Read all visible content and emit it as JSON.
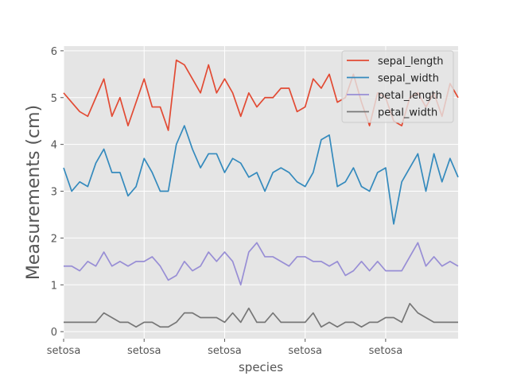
{
  "chart_data": {
    "type": "line",
    "xlabel": "species",
    "ylabel": "Measurements (cm)",
    "ylim": [
      -0.15,
      6.1
    ],
    "yticks": [
      0,
      1,
      2,
      3,
      4,
      5,
      6
    ],
    "xtick_labels": [
      "setosa",
      "setosa",
      "setosa",
      "setosa",
      "setosa"
    ],
    "xtick_index": [
      0,
      10,
      20,
      30,
      40
    ],
    "grid": true,
    "legend_position": "top-right",
    "colors": {
      "sepal_length": "#E24A33",
      "sepal_width": "#348ABD",
      "petal_length": "#988ED5",
      "petal_width": "#777777"
    },
    "series": [
      {
        "name": "sepal_length",
        "values": [
          5.1,
          4.9,
          4.7,
          4.6,
          5.0,
          5.4,
          4.6,
          5.0,
          4.4,
          4.9,
          5.4,
          4.8,
          4.8,
          4.3,
          5.8,
          5.7,
          5.4,
          5.1,
          5.7,
          5.1,
          5.4,
          5.1,
          4.6,
          5.1,
          4.8,
          5.0,
          5.0,
          5.2,
          5.2,
          4.7,
          4.8,
          5.4,
          5.2,
          5.5,
          4.9,
          5.0,
          5.5,
          4.9,
          4.4,
          5.1,
          5.0,
          4.5,
          4.4,
          5.0,
          5.1,
          4.8,
          5.1,
          4.6,
          5.3,
          5.0
        ]
      },
      {
        "name": "sepal_width",
        "values": [
          3.5,
          3.0,
          3.2,
          3.1,
          3.6,
          3.9,
          3.4,
          3.4,
          2.9,
          3.1,
          3.7,
          3.4,
          3.0,
          3.0,
          4.0,
          4.4,
          3.9,
          3.5,
          3.8,
          3.8,
          3.4,
          3.7,
          3.6,
          3.3,
          3.4,
          3.0,
          3.4,
          3.5,
          3.4,
          3.2,
          3.1,
          3.4,
          4.1,
          4.2,
          3.1,
          3.2,
          3.5,
          3.1,
          3.0,
          3.4,
          3.5,
          2.3,
          3.2,
          3.5,
          3.8,
          3.0,
          3.8,
          3.2,
          3.7,
          3.3
        ]
      },
      {
        "name": "petal_length",
        "values": [
          1.4,
          1.4,
          1.3,
          1.5,
          1.4,
          1.7,
          1.4,
          1.5,
          1.4,
          1.5,
          1.5,
          1.6,
          1.4,
          1.1,
          1.2,
          1.5,
          1.3,
          1.4,
          1.7,
          1.5,
          1.7,
          1.5,
          1.0,
          1.7,
          1.9,
          1.6,
          1.6,
          1.5,
          1.4,
          1.6,
          1.6,
          1.5,
          1.5,
          1.4,
          1.5,
          1.2,
          1.3,
          1.5,
          1.3,
          1.5,
          1.3,
          1.3,
          1.3,
          1.6,
          1.9,
          1.4,
          1.6,
          1.4,
          1.5,
          1.4
        ]
      },
      {
        "name": "petal_width",
        "values": [
          0.2,
          0.2,
          0.2,
          0.2,
          0.2,
          0.4,
          0.3,
          0.2,
          0.2,
          0.1,
          0.2,
          0.2,
          0.1,
          0.1,
          0.2,
          0.4,
          0.4,
          0.3,
          0.3,
          0.3,
          0.2,
          0.4,
          0.2,
          0.5,
          0.2,
          0.2,
          0.4,
          0.2,
          0.2,
          0.2,
          0.2,
          0.4,
          0.1,
          0.2,
          0.1,
          0.2,
          0.2,
          0.1,
          0.2,
          0.2,
          0.3,
          0.3,
          0.2,
          0.6,
          0.4,
          0.3,
          0.2,
          0.2,
          0.2,
          0.2
        ]
      }
    ]
  }
}
